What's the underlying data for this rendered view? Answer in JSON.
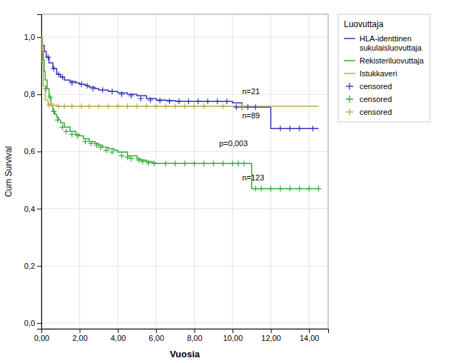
{
  "chart_data": {
    "type": "line",
    "xlabel": "Vuosia",
    "ylabel": "Cum Survival",
    "legend_title": "Luovuttaja",
    "legend": "right",
    "grid": true,
    "xlim": [
      0,
      15
    ],
    "ylim": [
      -0.02,
      1.08
    ],
    "xticks": [
      {
        "value": 0.0,
        "label": "0,00"
      },
      {
        "value": 2.0,
        "label": "2,00"
      },
      {
        "value": 4.0,
        "label": "4,00"
      },
      {
        "value": 6.0,
        "label": "6,00"
      },
      {
        "value": 8.0,
        "label": "8,00"
      },
      {
        "value": 10.0,
        "label": "10,00"
      },
      {
        "value": 12.0,
        "label": "12,00"
      },
      {
        "value": 14.0,
        "label": "14,00"
      }
    ],
    "yticks": [
      {
        "value": 0.0,
        "label": "0,0"
      },
      {
        "value": 0.2,
        "label": "0,2"
      },
      {
        "value": 0.4,
        "label": "0,4"
      },
      {
        "value": 0.6,
        "label": "0,6"
      },
      {
        "value": 0.8,
        "label": "0,8"
      },
      {
        "value": 1.0,
        "label": "1,0"
      }
    ],
    "annotations": [
      {
        "text": "n=21",
        "x": 10.5,
        "y": 0.8
      },
      {
        "text": "n=89",
        "x": 10.5,
        "y": 0.715
      },
      {
        "text": "p=0,003",
        "x": 9.3,
        "y": 0.618
      },
      {
        "text": "n=123",
        "x": 10.5,
        "y": 0.5
      }
    ],
    "series": [
      {
        "name": "HLA-identtinen\nsukulaisluovuttaja",
        "type": "step",
        "color": "#3333bb",
        "x": [
          0,
          0.05,
          0.15,
          0.25,
          0.4,
          0.6,
          0.8,
          1.0,
          1.2,
          1.5,
          1.8,
          2.0,
          2.3,
          2.5,
          2.8,
          3.0,
          3.5,
          4.0,
          4.5,
          5.0,
          5.5,
          6.0,
          6.5,
          7.0,
          7.5,
          8.0,
          8.5,
          9.0,
          9.5,
          10.0,
          10.5,
          11.0,
          11.5,
          12.0,
          14.5
        ],
        "values": [
          1.0,
          0.97,
          0.95,
          0.93,
          0.91,
          0.89,
          0.87,
          0.86,
          0.85,
          0.845,
          0.84,
          0.835,
          0.83,
          0.825,
          0.82,
          0.815,
          0.81,
          0.805,
          0.8,
          0.795,
          0.785,
          0.78,
          0.778,
          0.776,
          0.775,
          0.775,
          0.775,
          0.775,
          0.775,
          0.77,
          0.755,
          0.755,
          0.755,
          0.68,
          0.68
        ]
      },
      {
        "name": "Rekisteriluovuttaja",
        "type": "step",
        "color": "#33aa33",
        "x": [
          0,
          0.05,
          0.1,
          0.15,
          0.2,
          0.3,
          0.4,
          0.5,
          0.6,
          0.7,
          0.8,
          0.9,
          1.0,
          1.2,
          1.5,
          1.8,
          2.0,
          2.2,
          2.5,
          2.8,
          3.0,
          3.2,
          3.5,
          3.8,
          4.0,
          4.5,
          5.0,
          5.2,
          5.5,
          5.8,
          6.0,
          7.0,
          8.0,
          9.0,
          10.0,
          10.5,
          11.0,
          14.5
        ],
        "values": [
          1.0,
          0.95,
          0.92,
          0.88,
          0.85,
          0.82,
          0.79,
          0.76,
          0.74,
          0.73,
          0.72,
          0.71,
          0.7,
          0.685,
          0.67,
          0.66,
          0.655,
          0.645,
          0.635,
          0.628,
          0.622,
          0.615,
          0.61,
          0.604,
          0.598,
          0.585,
          0.575,
          0.57,
          0.565,
          0.56,
          0.558,
          0.558,
          0.558,
          0.558,
          0.558,
          0.558,
          0.47,
          0.47
        ]
      },
      {
        "name": "Istukkaveri",
        "type": "step",
        "color": "#bbaa55",
        "x": [
          0,
          0.05,
          0.1,
          0.2,
          0.35,
          0.5,
          0.8,
          14.5
        ],
        "values": [
          1.0,
          0.91,
          0.83,
          0.78,
          0.765,
          0.762,
          0.758,
          0.758
        ]
      },
      {
        "name": "censored",
        "type": "scatter",
        "marker": "+",
        "color": "#3333bb",
        "x": [
          0.35,
          0.65,
          0.9,
          1.1,
          1.6,
          2.1,
          2.4,
          2.7,
          3.2,
          3.7,
          4.2,
          4.7,
          5.2,
          5.7,
          6.2,
          6.7,
          7.2,
          7.7,
          8.2,
          8.7,
          9.2,
          9.7,
          10.2,
          10.5,
          10.8,
          11.2,
          12.5,
          13.0,
          13.5,
          14.2
        ],
        "values": [
          0.93,
          0.89,
          0.87,
          0.86,
          0.84,
          0.835,
          0.83,
          0.82,
          0.815,
          0.81,
          0.8,
          0.795,
          0.785,
          0.78,
          0.778,
          0.776,
          0.775,
          0.775,
          0.775,
          0.775,
          0.775,
          0.775,
          0.755,
          0.755,
          0.755,
          0.755,
          0.68,
          0.68,
          0.68,
          0.68
        ]
      },
      {
        "name": "censored",
        "type": "scatter",
        "marker": "+",
        "color": "#33aa33",
        "x": [
          0.25,
          0.45,
          0.65,
          0.85,
          1.1,
          1.3,
          1.6,
          1.9,
          2.3,
          2.6,
          2.9,
          3.1,
          3.4,
          3.7,
          4.2,
          4.5,
          4.7,
          5.1,
          5.3,
          5.6,
          5.9,
          6.5,
          7.0,
          7.5,
          8.0,
          8.5,
          9.0,
          9.5,
          10.0,
          10.3,
          10.6,
          11.2,
          11.5,
          12.0,
          12.5,
          13.0,
          13.5,
          14.0,
          14.5
        ],
        "values": [
          0.82,
          0.79,
          0.74,
          0.71,
          0.685,
          0.67,
          0.66,
          0.655,
          0.635,
          0.628,
          0.622,
          0.615,
          0.604,
          0.598,
          0.585,
          0.58,
          0.575,
          0.57,
          0.565,
          0.56,
          0.558,
          0.558,
          0.558,
          0.558,
          0.558,
          0.558,
          0.558,
          0.558,
          0.558,
          0.558,
          0.558,
          0.47,
          0.47,
          0.47,
          0.47,
          0.47,
          0.47,
          0.47,
          0.47
        ]
      },
      {
        "name": "censored",
        "type": "scatter",
        "marker": "+",
        "color": "#bbaa55",
        "x": [
          0.4,
          0.6,
          0.9,
          1.2,
          1.6,
          2.1,
          2.5,
          3.0,
          3.5,
          4.0,
          4.5,
          5.0,
          5.5,
          6.0,
          6.5,
          7.0,
          7.5,
          8.0,
          8.5,
          9.5,
          10.5
        ],
        "values": [
          0.762,
          0.762,
          0.758,
          0.758,
          0.758,
          0.758,
          0.758,
          0.758,
          0.758,
          0.758,
          0.758,
          0.758,
          0.758,
          0.758,
          0.758,
          0.758,
          0.758,
          0.758,
          0.758,
          0.758,
          0.758
        ]
      }
    ]
  }
}
